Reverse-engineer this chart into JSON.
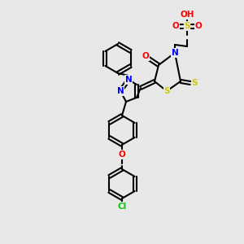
{
  "bg_color": "#e8e8e8",
  "atom_colors": {
    "N": "#0000ff",
    "O": "#ff0000",
    "S": "#cccc00",
    "Cl": "#00cc00",
    "C": "#000000",
    "H": "#7f7f7f"
  },
  "bond_color": "#000000",
  "bond_width": 1.5,
  "font_size": 7.5
}
